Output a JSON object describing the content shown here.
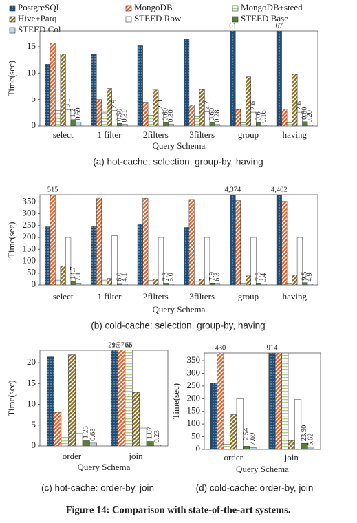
{
  "figure_caption": "Figure 14: Comparison with state-of-the-art systems.",
  "chart_data": [
    {
      "type": "bar",
      "caption": "(a) hot-cache: selection, group-by, having",
      "x_label": "Query Schema",
      "y_label": "Time(sec)",
      "categories": [
        "select",
        "1 filter",
        "2filters",
        "3filters",
        "group",
        "having"
      ],
      "ylim": [
        0,
        18
      ],
      "yticks": [
        0,
        5,
        10,
        15
      ],
      "series": [
        {
          "name": "PostgreSQL",
          "color": "#1f4e79",
          "pattern": "dots",
          "values": [
            11.7,
            13.6,
            15.2,
            16.4,
            61,
            67
          ],
          "value_labels": [
            null,
            null,
            null,
            null,
            "61",
            "67"
          ]
        },
        {
          "name": "MongoDB",
          "color": "#e4622a",
          "pattern": "diagonal",
          "values": [
            15.7,
            5.0,
            4.5,
            4.0,
            3.1,
            3.2
          ]
        },
        {
          "name": "MongoDB+steed",
          "color": "#a9d18e",
          "pattern": "horizontal",
          "values": [
            2.9,
            2.6,
            2.0,
            1.8,
            0.6,
            0.6
          ]
        },
        {
          "name": "Hive+Parq",
          "color": "#8c6d1f",
          "pattern": "diagonal",
          "values": [
            13.6,
            7.1,
            6.8,
            6.9,
            9.3,
            9.8
          ]
        },
        {
          "name": "STEED Row",
          "color": "#ffffff",
          "pattern": "solid",
          "values": [
            3.1,
            2.9,
            2.8,
            2.7,
            2.6,
            2.6
          ],
          "value_labels": [
            "3.1",
            "2.9",
            "2.8",
            "2.7",
            "2.6",
            "2.6"
          ]
        },
        {
          "name": "STEED Base",
          "color": "#548235",
          "pattern": "solid",
          "values": [
            1.2,
            0.5,
            0.6,
            0.6,
            0.6,
            0.8
          ],
          "value_labels": [
            "1.2",
            "0.50",
            "0.60",
            "0.60",
            "0.6",
            "0.80"
          ]
        },
        {
          "name": "STEED Col",
          "color": "#bdd7ee",
          "pattern": "solid",
          "values": [
            0.69,
            0.31,
            0.3,
            0.28,
            0.16,
            0.2
          ],
          "value_labels": [
            "0.69",
            "0.31",
            "0.30",
            "0.28",
            "0.16",
            "0.20"
          ]
        }
      ]
    },
    {
      "type": "bar",
      "caption": "(b) cold-cache: selection, group-by, having",
      "x_label": "Query Schema",
      "y_label": "Time(sec)",
      "categories": [
        "select",
        "1 filter",
        "2filters",
        "3filters",
        "group",
        "having"
      ],
      "ylim": [
        0,
        380
      ],
      "yticks": [
        0,
        50,
        100,
        150,
        200,
        250,
        300,
        350
      ],
      "series": [
        {
          "values": [
            245,
            247,
            257,
            242,
            4374,
            4402
          ],
          "value_labels": [
            null,
            null,
            null,
            null,
            "4,374",
            "4,402"
          ]
        },
        {
          "values": [
            515,
            368,
            365,
            360,
            355,
            352
          ],
          "value_labels": [
            "515",
            null,
            null,
            null,
            null,
            null
          ]
        },
        {
          "values": [
            20,
            20,
            18,
            15,
            8,
            8
          ]
        },
        {
          "values": [
            80,
            27,
            25,
            25,
            38,
            42
          ]
        },
        {
          "values": [
            200,
            208,
            200,
            200,
            200,
            200
          ]
        },
        {
          "values": [
            14.7,
            6.0,
            7.3,
            7.9,
            7.5,
            9.5
          ],
          "value_labels": [
            "14.7",
            "6.0",
            "7.3",
            "7.9",
            "7.5",
            "9.5"
          ]
        },
        {
          "values": [
            7.1,
            4.1,
            5.0,
            6.3,
            3.4,
            4.9
          ],
          "value_labels": [
            "7.1",
            "4.1",
            "5.0",
            "6.3",
            "3.4",
            "4.9"
          ]
        }
      ]
    },
    {
      "type": "bar",
      "caption": "(c) hot-cache: order-by, join",
      "x_label": "Query Schema",
      "y_label": "Time(sec)",
      "categories": [
        "order",
        "join"
      ],
      "ylim": [
        0,
        23
      ],
      "yticks": [
        0,
        5,
        10,
        15,
        20
      ],
      "series": [
        {
          "values": [
            21.4,
            29.5
          ],
          "value_labels": [
            null,
            "29.5"
          ]
        },
        {
          "values": [
            8.1,
            16702
          ],
          "value_labels": [
            null,
            "16,702"
          ]
        },
        {
          "values": [
            2.0,
            66
          ],
          "value_labels": [
            null,
            "66"
          ]
        },
        {
          "values": [
            21.9,
            12.9
          ]
        },
        {
          "values": [
            3.0,
            4.3
          ]
        },
        {
          "values": [
            1.25,
            1.07
          ],
          "value_labels": [
            "1.25",
            "1.07"
          ]
        },
        {
          "values": [
            0.68,
            0.23
          ],
          "value_labels": [
            "0.68",
            "0.23"
          ]
        }
      ]
    },
    {
      "type": "bar",
      "caption": "(d) cold-cache: order-by, join",
      "x_label": "Query Schema",
      "y_label": "Time(sec)",
      "categories": [
        "order",
        "join"
      ],
      "ylim": [
        0,
        380
      ],
      "yticks": [
        0,
        50,
        100,
        150,
        200,
        250,
        300,
        350
      ],
      "series": [
        {
          "values": [
            260,
            914
          ],
          "value_labels": [
            null,
            "914"
          ]
        },
        {
          "values": [
            430,
            380
          ],
          "value_labels": [
            "430",
            null
          ]
        },
        {
          "values": [
            20,
            380
          ]
        },
        {
          "values": [
            137,
            35
          ]
        },
        {
          "values": [
            200,
            197
          ]
        },
        {
          "values": [
            12.54,
            23.9
          ],
          "value_labels": [
            "12.54",
            "23.90"
          ]
        },
        {
          "values": [
            7.69,
            5.62
          ],
          "value_labels": [
            "7.69",
            "5.62"
          ]
        }
      ]
    }
  ]
}
